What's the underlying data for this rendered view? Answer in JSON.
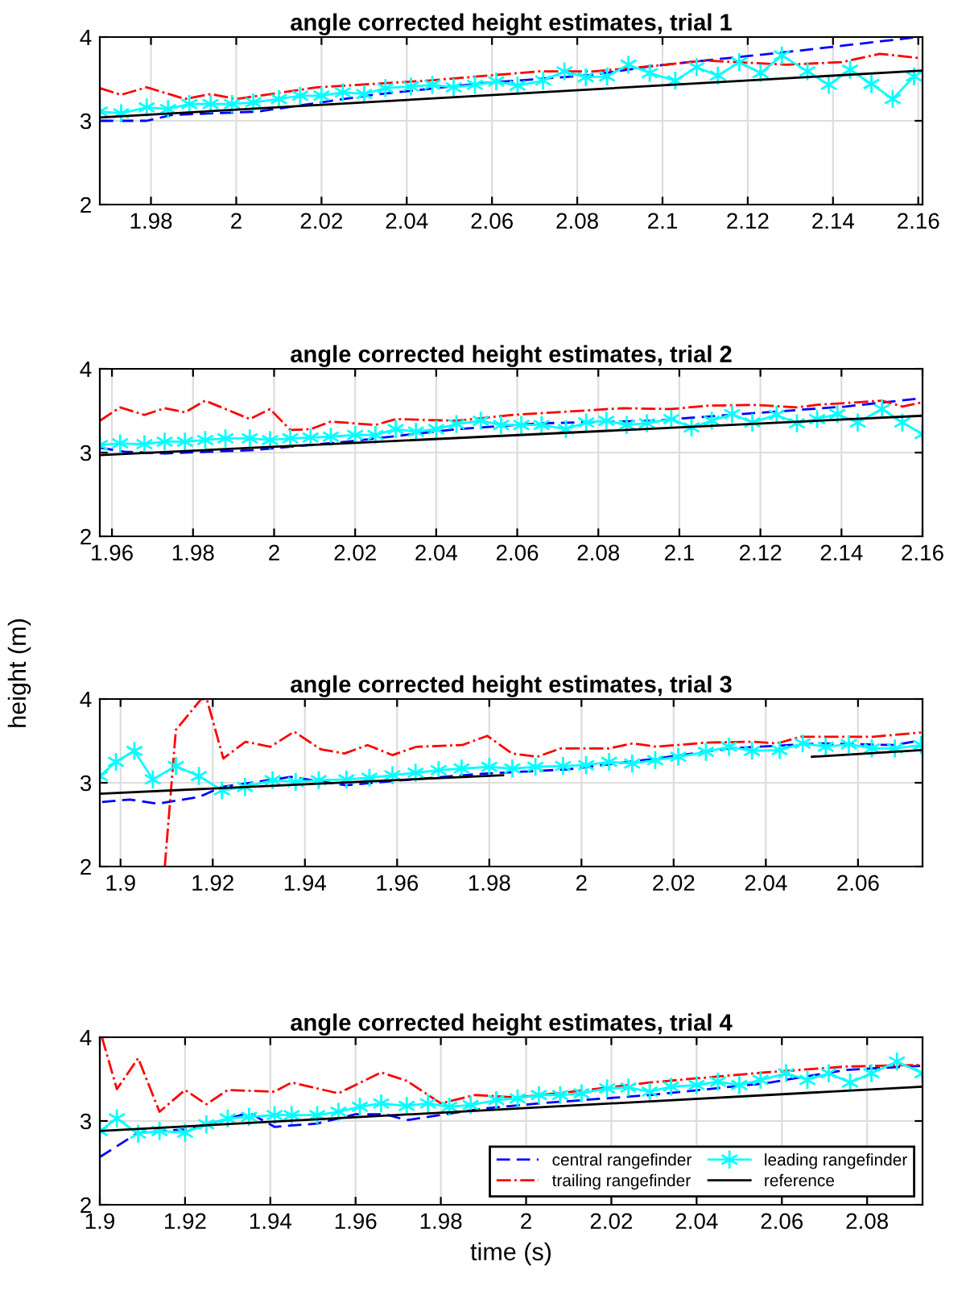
{
  "chart_data": [
    {
      "type": "line",
      "title": "angle corrected height estimates, trial 1",
      "xlim": [
        1.968,
        2.161
      ],
      "xticks": [
        1.98,
        2,
        2.02,
        2.04,
        2.06,
        2.08,
        2.1,
        2.12,
        2.14,
        2.16
      ],
      "ylim": [
        2,
        4
      ],
      "yticks": [
        2,
        3,
        4
      ],
      "grid": true,
      "series": [
        {
          "color": "#0000ff",
          "line_style": "dashed",
          "x": [
            1.968,
            1.979,
            1.985,
            2.005,
            2.032,
            2.058,
            2.084,
            2.097,
            2.11,
            2.129,
            2.16
          ],
          "values": [
            3.0,
            3.0,
            3.07,
            3.11,
            3.31,
            3.45,
            3.55,
            3.65,
            3.72,
            3.82,
            4.0
          ]
        },
        {
          "color": "#ff0000",
          "line_style": "dashdot",
          "x": [
            1.968,
            1.973,
            1.979,
            1.988,
            1.994,
            2.0,
            2.019,
            2.045,
            2.071,
            2.084,
            2.097,
            2.11,
            2.129,
            2.142,
            2.151,
            2.16
          ],
          "values": [
            3.39,
            3.31,
            3.4,
            3.26,
            3.32,
            3.26,
            3.4,
            3.48,
            3.59,
            3.59,
            3.65,
            3.72,
            3.67,
            3.7,
            3.8,
            3.75
          ]
        },
        {
          "color": "#00ffff",
          "line_style": "solid",
          "marker": "cross",
          "x": [
            1.968,
            1.973,
            1.979,
            1.984,
            1.989,
            1.994,
            1.999,
            2.004,
            2.01,
            2.015,
            2.02,
            2.025,
            2.03,
            2.035,
            2.041,
            2.046,
            2.051,
            2.056,
            2.061,
            2.066,
            2.072,
            2.077,
            2.082,
            2.087,
            2.092,
            2.097,
            2.103,
            2.108,
            2.113,
            2.118,
            2.123,
            2.128,
            2.134,
            2.139,
            2.144,
            2.149,
            2.154,
            2.159
          ],
          "values": [
            3.11,
            3.09,
            3.16,
            3.14,
            3.2,
            3.2,
            3.2,
            3.22,
            3.26,
            3.3,
            3.3,
            3.34,
            3.32,
            3.39,
            3.41,
            3.43,
            3.4,
            3.43,
            3.47,
            3.42,
            3.48,
            3.59,
            3.52,
            3.53,
            3.67,
            3.57,
            3.48,
            3.64,
            3.54,
            3.7,
            3.57,
            3.78,
            3.59,
            3.43,
            3.61,
            3.44,
            3.26,
            3.53
          ]
        },
        {
          "color": "#000000",
          "line_style": "solid",
          "x": [
            1.968,
            2.161
          ],
          "values": [
            3.04,
            3.6
          ]
        }
      ]
    },
    {
      "type": "line",
      "title": "angle corrected height estimates, trial 2",
      "ylabel": "height (m)",
      "xlim": [
        1.957,
        2.16
      ],
      "xticks": [
        1.96,
        1.98,
        2,
        2.02,
        2.04,
        2.06,
        2.08,
        2.1,
        2.12,
        2.14,
        2.16
      ],
      "ylim": [
        2,
        4
      ],
      "yticks": [
        2,
        3,
        4
      ],
      "grid": true,
      "series": [
        {
          "color": "#0000ff",
          "line_style": "dashed",
          "x": [
            1.957,
            1.963,
            1.973,
            1.995,
            2.018,
            2.045,
            2.066,
            2.093,
            2.121,
            2.141,
            2.16
          ],
          "values": [
            3.06,
            3.01,
            2.99,
            3.03,
            3.13,
            3.28,
            3.35,
            3.38,
            3.48,
            3.55,
            3.65
          ]
        },
        {
          "color": "#ff0000",
          "line_style": "dashdot",
          "x": [
            1.957,
            1.962,
            1.968,
            1.973,
            1.978,
            1.983,
            1.994,
            1.999,
            2.004,
            2.009,
            2.014,
            2.025,
            2.03,
            2.045,
            2.059,
            2.086,
            2.098,
            2.107,
            2.118,
            2.129,
            2.134,
            2.15,
            2.155,
            2.16
          ],
          "values": [
            3.38,
            3.54,
            3.45,
            3.53,
            3.48,
            3.62,
            3.4,
            3.52,
            3.27,
            3.28,
            3.37,
            3.33,
            3.4,
            3.38,
            3.45,
            3.53,
            3.52,
            3.56,
            3.57,
            3.54,
            3.57,
            3.62,
            3.55,
            3.6
          ]
        },
        {
          "color": "#00ffff",
          "line_style": "solid",
          "marker": "cross",
          "x": [
            1.957,
            1.962,
            1.968,
            1.973,
            1.978,
            1.983,
            1.988,
            1.994,
            1.999,
            2.004,
            2.009,
            2.014,
            2.02,
            2.025,
            2.03,
            2.035,
            2.04,
            2.045,
            2.051,
            2.056,
            2.061,
            2.066,
            2.072,
            2.077,
            2.082,
            2.087,
            2.092,
            2.098,
            2.103,
            2.108,
            2.113,
            2.118,
            2.124,
            2.129,
            2.134,
            2.139,
            2.144,
            2.15,
            2.155,
            2.16
          ],
          "values": [
            3.09,
            3.11,
            3.1,
            3.13,
            3.13,
            3.15,
            3.17,
            3.17,
            3.15,
            3.17,
            3.18,
            3.19,
            3.21,
            3.21,
            3.28,
            3.25,
            3.28,
            3.34,
            3.38,
            3.33,
            3.33,
            3.33,
            3.28,
            3.36,
            3.38,
            3.33,
            3.35,
            3.4,
            3.3,
            3.38,
            3.46,
            3.36,
            3.45,
            3.35,
            3.4,
            3.46,
            3.36,
            3.52,
            3.36,
            3.22
          ]
        },
        {
          "color": "#000000",
          "line_style": "solid",
          "x": [
            1.957,
            2.16
          ],
          "values": [
            2.97,
            3.44
          ]
        }
      ]
    },
    {
      "type": "line",
      "title": "angle corrected height estimates, trial 3",
      "xlim": [
        1.8955,
        2.074
      ],
      "xticks": [
        1.9,
        1.92,
        1.94,
        1.96,
        1.98,
        2,
        2.02,
        2.04,
        2.06
      ],
      "ylim": [
        2,
        4
      ],
      "yticks": [
        2,
        3,
        4
      ],
      "grid": true,
      "series": [
        {
          "color": "#0000ff",
          "line_style": "dashed",
          "x": [
            1.896,
            1.902,
            1.908,
            1.917,
            1.922,
            1.937,
            1.949,
            1.961,
            1.979,
            1.997,
            2.015,
            2.032,
            2.045,
            2.052,
            2.068,
            2.074
          ],
          "values": [
            2.77,
            2.8,
            2.75,
            2.83,
            2.95,
            3.07,
            2.97,
            3.03,
            3.11,
            3.16,
            3.28,
            3.41,
            3.45,
            3.47,
            3.45,
            3.51
          ]
        },
        {
          "color": "#ff0000",
          "line_style": "dashdot",
          "x": [
            1.9096,
            1.912,
            1.9175,
            1.9187,
            1.9223,
            1.9271,
            1.9325,
            1.9377,
            1.9434,
            1.9486,
            1.9536,
            1.959,
            1.9642,
            1.9741,
            1.9796,
            1.9849,
            1.9904,
            1.9955,
            2.006,
            2.0111,
            2.0163,
            2.0271,
            2.0371,
            2.0425,
            2.0476,
            2.0633,
            2.0737
          ],
          "values": [
            2.0,
            3.63,
            4.0,
            4.0,
            3.29,
            3.49,
            3.43,
            3.61,
            3.4,
            3.35,
            3.45,
            3.33,
            3.43,
            3.45,
            3.56,
            3.35,
            3.31,
            3.41,
            3.41,
            3.47,
            3.43,
            3.48,
            3.49,
            3.47,
            3.55,
            3.55,
            3.6
          ]
        },
        {
          "color": "#00ffff",
          "line_style": "solid",
          "marker": "cross",
          "x": [
            1.8955,
            1.899,
            1.903,
            1.907,
            1.912,
            1.917,
            1.922,
            1.927,
            1.933,
            1.938,
            1.943,
            1.949,
            1.954,
            1.959,
            1.964,
            1.969,
            1.974,
            1.98,
            1.985,
            1.99,
            1.996,
            2.001,
            2.006,
            2.011,
            2.016,
            2.021,
            2.027,
            2.032,
            2.037,
            2.043,
            2.048,
            2.053,
            2.058,
            2.063,
            2.068,
            2.0737
          ],
          "values": [
            3.08,
            3.25,
            3.38,
            3.04,
            3.2,
            3.08,
            2.91,
            2.95,
            3.03,
            3.01,
            3.03,
            3.04,
            3.06,
            3.09,
            3.12,
            3.15,
            3.17,
            3.19,
            3.17,
            3.19,
            3.2,
            3.21,
            3.25,
            3.23,
            3.27,
            3.31,
            3.37,
            3.43,
            3.38,
            3.39,
            3.47,
            3.43,
            3.46,
            3.41,
            3.41,
            3.45
          ]
        },
        {
          "color": "#000000",
          "line_style": "solid",
          "x": [
            1.8955,
            1.983,
            1.984,
            2.05,
            2.0737
          ],
          "values": [
            2.87,
            3.09,
            null,
            3.31,
            3.39
          ]
        }
      ]
    },
    {
      "type": "line",
      "title": "angle corrected height estimates, trial 4",
      "xlabel": "time (s)",
      "xlim": [
        1.9,
        2.093
      ],
      "xticks": [
        1.9,
        1.92,
        1.94,
        1.96,
        1.98,
        2,
        2.02,
        2.04,
        2.06,
        2.08
      ],
      "ylim": [
        2,
        4
      ],
      "yticks": [
        2,
        3,
        4
      ],
      "grid": true,
      "legend": "bottom right",
      "series": [
        {
          "name": "central rangefinder",
          "color": "#0000ff",
          "line_style": "dashed",
          "x": [
            1.9,
            1.909,
            1.92,
            1.929,
            1.935,
            1.941,
            1.951,
            1.96,
            1.967,
            1.972,
            1.99,
            2.003,
            2.029,
            2.056,
            2.075,
            2.093
          ],
          "values": [
            2.57,
            2.86,
            2.9,
            3.01,
            3.1,
            2.93,
            2.97,
            3.08,
            3.08,
            3.01,
            3.15,
            3.21,
            3.31,
            3.45,
            3.61,
            3.66
          ]
        },
        {
          "name": "trailing rangefinder",
          "color": "#ff0000",
          "line_style": "dashdot",
          "x": [
            1.9005,
            1.904,
            1.909,
            1.914,
            1.92,
            1.925,
            1.93,
            1.941,
            1.945,
            1.956,
            1.966,
            1.972,
            1.98,
            1.988,
            1.998,
            2.016,
            2.029,
            2.056,
            2.075,
            2.093
          ],
          "values": [
            4.0,
            3.38,
            3.75,
            3.11,
            3.37,
            3.2,
            3.37,
            3.35,
            3.46,
            3.33,
            3.58,
            3.48,
            3.21,
            3.31,
            3.28,
            3.38,
            3.46,
            3.58,
            3.65,
            3.67
          ]
        },
        {
          "name": "leading rangefinder",
          "color": "#00ffff",
          "line_style": "solid",
          "marker": "cross",
          "x": [
            1.9,
            1.904,
            1.909,
            1.914,
            1.92,
            1.925,
            1.93,
            1.935,
            1.941,
            1.945,
            1.951,
            1.956,
            1.961,
            1.966,
            1.972,
            1.977,
            1.982,
            1.987,
            1.993,
            1.998,
            2.003,
            2.008,
            2.013,
            2.019,
            2.024,
            2.029,
            2.034,
            2.04,
            2.045,
            2.05,
            2.055,
            2.061,
            2.066,
            2.071,
            2.076,
            2.081,
            2.087,
            2.093
          ],
          "values": [
            2.88,
            3.03,
            2.85,
            2.88,
            2.86,
            2.96,
            3.03,
            3.05,
            3.07,
            3.07,
            3.07,
            3.11,
            3.17,
            3.21,
            3.18,
            3.21,
            3.17,
            3.19,
            3.25,
            3.27,
            3.31,
            3.31,
            3.33,
            3.39,
            3.4,
            3.35,
            3.41,
            3.43,
            3.47,
            3.43,
            3.49,
            3.57,
            3.49,
            3.57,
            3.46,
            3.57,
            3.71,
            3.57
          ]
        },
        {
          "name": "reference",
          "color": "#000000",
          "line_style": "solid",
          "x": [
            1.9,
            2.093
          ],
          "values": [
            2.88,
            3.41
          ]
        }
      ]
    }
  ]
}
